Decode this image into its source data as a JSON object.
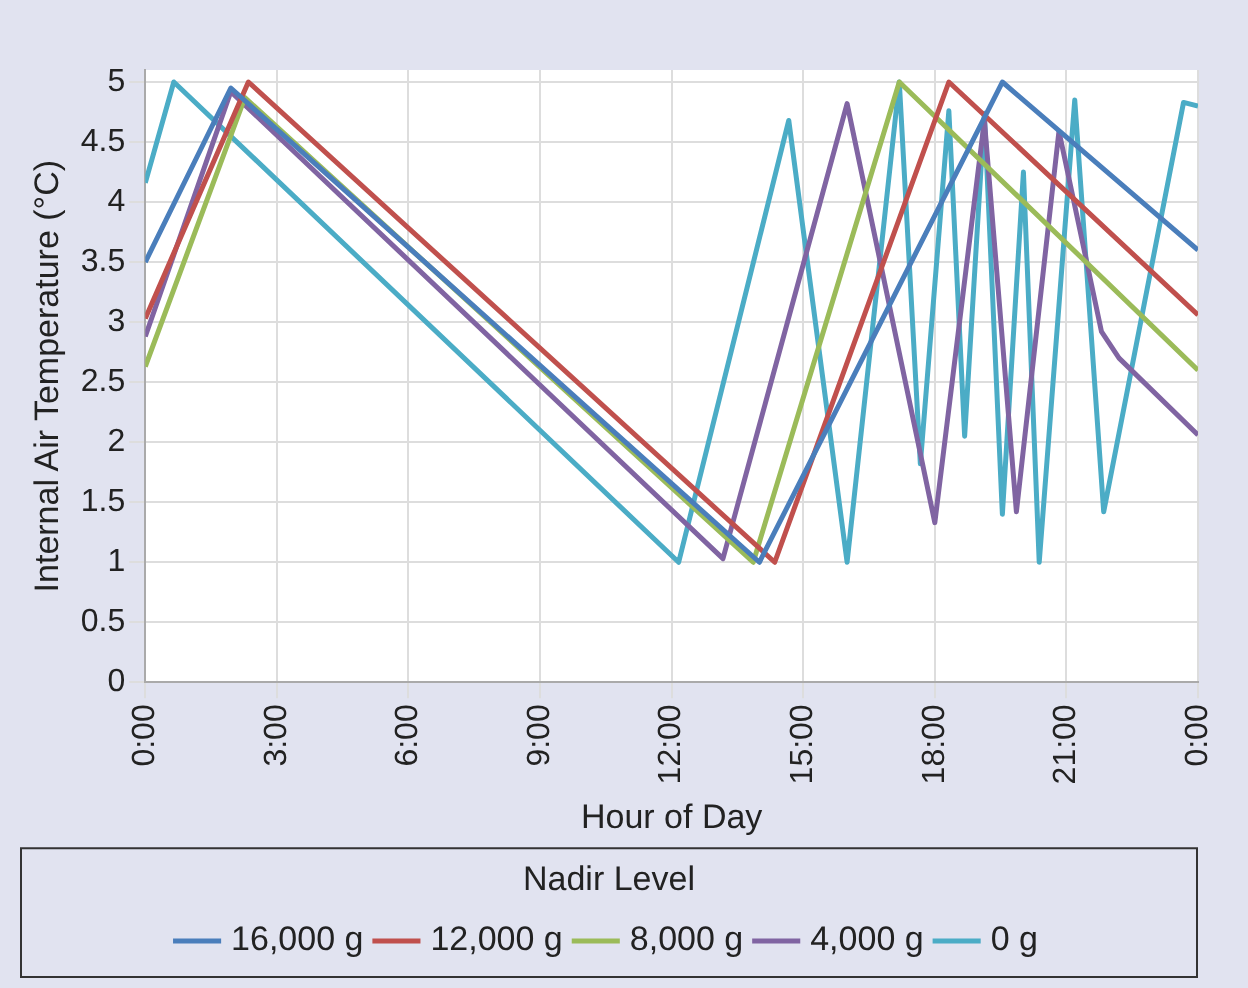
{
  "chart_data": {
    "type": "line",
    "xlabel": "Hour of Day",
    "ylabel": "Internal Air Temperature (°C)",
    "legend_title": "Nadir Level",
    "legend": "bottom",
    "grid": true,
    "marker": "none",
    "line_style": "solid",
    "xlim": [
      0,
      24
    ],
    "xticks": [
      {
        "value": 0,
        "label": "0:00"
      },
      {
        "value": 3,
        "label": "3:00"
      },
      {
        "value": 6,
        "label": "6:00"
      },
      {
        "value": 9,
        "label": "9:00"
      },
      {
        "value": 12,
        "label": "12:00"
      },
      {
        "value": 15,
        "label": "15:00"
      },
      {
        "value": 18,
        "label": "18:00"
      },
      {
        "value": 21,
        "label": "21:00"
      },
      {
        "value": 24,
        "label": "0:00"
      }
    ],
    "ylim": [
      0,
      5.1
    ],
    "yticks": [
      0,
      0.5,
      1,
      1.5,
      2,
      2.5,
      3,
      3.5,
      4,
      4.5,
      5
    ],
    "series": [
      {
        "name": "16,000 g",
        "color": "#4a7ebb",
        "x": [
          0,
          1.95,
          14.0,
          19.54,
          24
        ],
        "values": [
          3.5,
          4.95,
          1.0,
          5.0,
          3.6
        ]
      },
      {
        "name": "12,000 g",
        "color": "#c0504d",
        "x": [
          0,
          2.35,
          14.35,
          18.32,
          24
        ],
        "values": [
          3.03,
          5.0,
          1.0,
          5.0,
          3.06
        ]
      },
      {
        "name": "8,000 g",
        "color": "#9bbb59",
        "x": [
          0,
          2.27,
          13.86,
          17.19,
          24
        ],
        "values": [
          2.63,
          4.87,
          1.0,
          5.0,
          2.6
        ]
      },
      {
        "name": "4,000 g",
        "color": "#8064a2",
        "x": [
          0,
          1.95,
          13.17,
          16.0,
          18.0,
          19.13,
          19.86,
          20.83,
          21.8,
          22.2,
          24
        ],
        "values": [
          2.88,
          4.92,
          1.03,
          4.82,
          1.33,
          4.68,
          1.42,
          4.59,
          2.92,
          2.7,
          2.06
        ]
      },
      {
        "name": "0 g",
        "color": "#4bacc6",
        "x": [
          0,
          0.65,
          12.16,
          14.67,
          16.0,
          17.19,
          17.67,
          18.32,
          18.68,
          19.13,
          19.54,
          20.02,
          20.38,
          21.19,
          21.85,
          23.67,
          24
        ],
        "values": [
          4.16,
          5.0,
          1.0,
          4.68,
          1.0,
          5.0,
          1.82,
          4.76,
          2.05,
          4.74,
          1.4,
          4.25,
          1.0,
          4.85,
          1.42,
          4.83,
          4.8
        ]
      }
    ]
  }
}
